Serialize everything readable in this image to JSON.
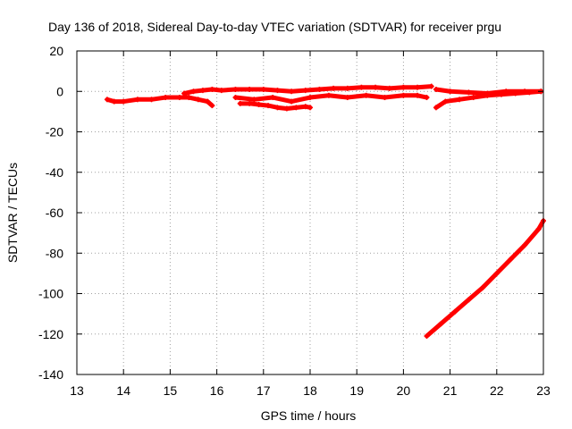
{
  "chart_data": {
    "type": "scatter",
    "title": "Day 136 of 2018, Sidereal Day-to-day VTEC variation (SDTVAR) for receiver prgu",
    "xlabel": "GPS time / hours",
    "ylabel": "SDTVAR / TECUs",
    "xlim": [
      13,
      23
    ],
    "ylim": [
      -140,
      20
    ],
    "xticks": [
      13,
      14,
      15,
      16,
      17,
      18,
      19,
      20,
      21,
      22,
      23
    ],
    "yticks": [
      -140,
      -120,
      -100,
      -80,
      -60,
      -40,
      -20,
      0,
      20
    ],
    "grid": true,
    "point_color": "#ff0000",
    "series": [
      {
        "x": [
          13.65,
          13.8,
          14.0,
          14.3,
          14.6,
          14.9,
          15.2,
          15.4,
          15.6,
          15.8,
          15.9
        ],
        "y": [
          -4,
          -5,
          -5,
          -4,
          -4,
          -3,
          -3,
          -3,
          -4,
          -5,
          -7
        ]
      },
      {
        "x": [
          15.3,
          15.5,
          15.7,
          15.9,
          16.1,
          16.4,
          16.7,
          17.0,
          17.3,
          17.6,
          17.9,
          18.2,
          18.5,
          18.8,
          19.1,
          19.4,
          19.7,
          20.0,
          20.3,
          20.6
        ],
        "y": [
          -1,
          0,
          0.5,
          1,
          0.5,
          1,
          1,
          1,
          0.5,
          0,
          0.5,
          1,
          1.5,
          1.5,
          2,
          2,
          1.5,
          2,
          2,
          2.5
        ]
      },
      {
        "x": [
          16.5,
          16.7,
          16.9,
          17.1,
          17.3,
          17.5,
          17.7,
          17.9,
          18.0
        ],
        "y": [
          -6,
          -6,
          -6.5,
          -7,
          -8,
          -8.5,
          -8,
          -7.5,
          -8
        ]
      },
      {
        "x": [
          16.4,
          16.8,
          17.2,
          17.6,
          18.0,
          18.4,
          18.8,
          19.2,
          19.6,
          20.0,
          20.3,
          20.5
        ],
        "y": [
          -3,
          -4,
          -3,
          -5,
          -3,
          -2,
          -3,
          -2,
          -3,
          -2,
          -2,
          -3
        ]
      },
      {
        "x": [
          20.7,
          20.9,
          21.2,
          21.5,
          21.8,
          22.1,
          22.4,
          22.7,
          22.95
        ],
        "y": [
          -8,
          -5,
          -4,
          -3,
          -2,
          -1.5,
          -1,
          -0.5,
          0
        ]
      },
      {
        "x": [
          20.7,
          21.0,
          21.4,
          21.8,
          22.2,
          22.6,
          22.95
        ],
        "y": [
          1,
          0,
          -0.5,
          -1,
          0,
          0,
          0
        ]
      },
      {
        "x": [
          20.5,
          20.8,
          21.1,
          21.4,
          21.7,
          22.0,
          22.3,
          22.6,
          22.9,
          23.0
        ],
        "y": [
          -121,
          -115,
          -109,
          -103,
          -97,
          -90,
          -83,
          -76,
          -68,
          -64
        ]
      }
    ]
  }
}
